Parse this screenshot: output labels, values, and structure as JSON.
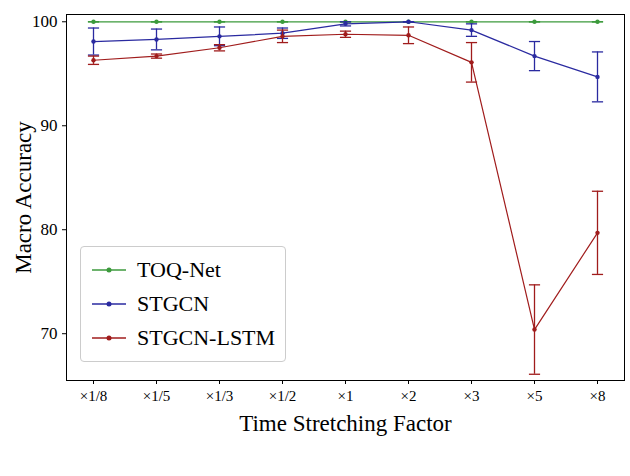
{
  "chart_data": {
    "type": "line",
    "x_label": "Time Stretching Factor",
    "y_label": "Macro Accuracy",
    "categories": [
      "×1/8",
      "×1/5",
      "×1/3",
      "×1/2",
      "×1",
      "×2",
      "×3",
      "×5",
      "×8"
    ],
    "ylim": [
      65.5,
      100.7
    ],
    "yticks": [
      70,
      80,
      90,
      100
    ],
    "grid": false,
    "legend": "lower left",
    "marker": "circle",
    "series": [
      {
        "name": "TOQ-Net",
        "color": "#3c9a3c",
        "values": [
          100,
          100,
          100,
          100,
          100,
          100,
          100,
          100,
          100
        ],
        "errors": [
          0,
          0,
          0,
          0,
          0,
          0,
          0,
          0,
          0
        ]
      },
      {
        "name": "STGCN",
        "color": "#2a2aa0",
        "values": [
          98.1,
          98.3,
          98.6,
          98.9,
          99.8,
          100,
          99.2,
          96.7,
          94.7
        ],
        "errors": [
          1.3,
          1.0,
          0.9,
          0.5,
          0.2,
          0,
          0.6,
          1.4,
          2.4
        ]
      },
      {
        "name": "STGCN-LSTM",
        "color": "#a01c1c",
        "values": [
          96.3,
          96.7,
          97.5,
          98.6,
          98.8,
          98.7,
          96.1,
          70.4,
          79.7
        ],
        "errors": [
          0.4,
          0.2,
          0.3,
          0.6,
          0.3,
          0.8,
          1.9,
          4.3,
          4.0
        ]
      }
    ]
  }
}
